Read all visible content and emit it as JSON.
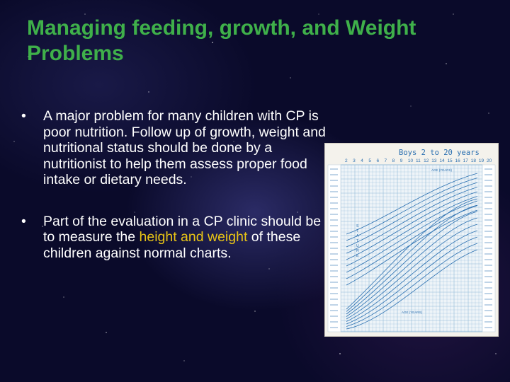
{
  "slide": {
    "title": "Managing feeding, growth, and Weight Problems",
    "bullet_glyph": "•",
    "bullets": [
      {
        "text_before": "A major problem for many children with CP is poor nutrition. Follow up of growth, weight and nutritional status should be done by a nutritionist to help them assess proper food intake or dietary needs.",
        "highlight": "",
        "text_after": ""
      },
      {
        "text_before": "Part of the evaluation in a CP clinic should be to measure the ",
        "highlight": "height and weight",
        "text_after": " of these children against normal charts."
      }
    ]
  },
  "growth_chart_image": {
    "heading": "Boys 2 to 20 years",
    "age_ticks": [
      "2",
      "3",
      "4",
      "5",
      "6",
      "7",
      "8",
      "9",
      "10",
      "11",
      "12",
      "13",
      "14",
      "15",
      "16",
      "17",
      "18",
      "19",
      "20"
    ],
    "top_axis_label": "AGE (YEARS)",
    "bottom_axis_label": "AGE (YEARS)",
    "stature_label": "STATURE",
    "ink_color": "#2a6fb0",
    "grid_color": "#8fb8d8"
  },
  "colors": {
    "title": "#3fb04a",
    "body_text": "#ffffff",
    "highlight": "#e8c416",
    "background": "#0a0a2a"
  }
}
